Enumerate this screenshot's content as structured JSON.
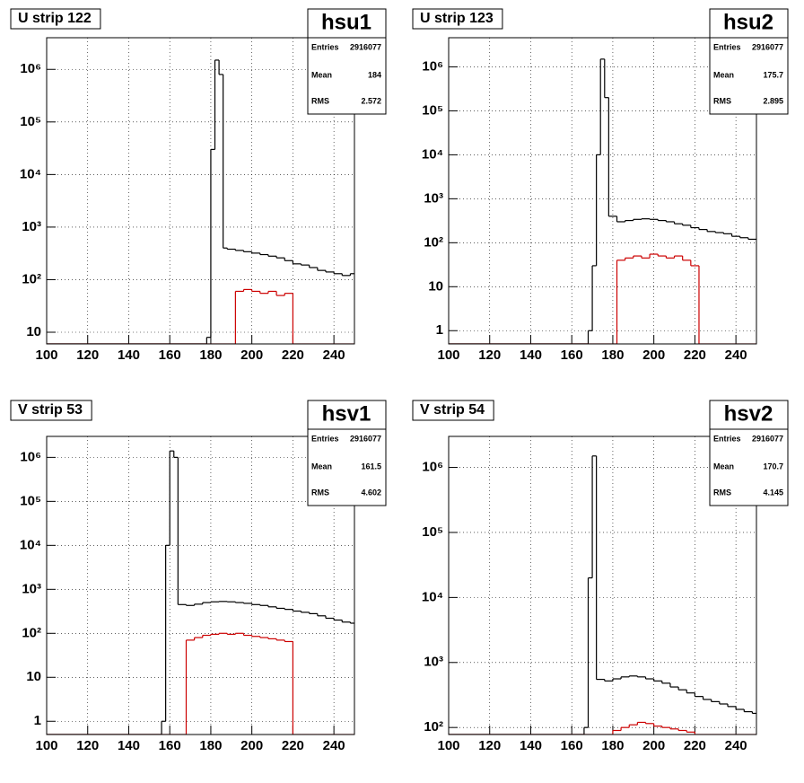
{
  "chart_data": [
    {
      "type": "histogram",
      "title": "U strip 122",
      "name": "hsu1",
      "stats": [
        {
          "label": "Entries",
          "value": 2916077
        },
        {
          "label": "Mean",
          "value": 184
        },
        {
          "label": "RMS",
          "value": 2.572
        }
      ],
      "bins": [
        100,
        178,
        180,
        182,
        184,
        186,
        188,
        192,
        196,
        200,
        204,
        208,
        212,
        216,
        220,
        224,
        228,
        232,
        236,
        240,
        244,
        248,
        250
      ],
      "series": [
        {
          "color": "#000000",
          "values": [
            0,
            8,
            30000,
            1500000,
            800000,
            400,
            380,
            360,
            340,
            320,
            300,
            280,
            260,
            230,
            200,
            190,
            170,
            150,
            140,
            130,
            120,
            130
          ]
        },
        {
          "color": "#cc0000",
          "values": [
            0,
            0,
            0,
            0,
            0,
            0,
            0,
            60,
            65,
            60,
            55,
            60,
            50,
            55,
            0,
            0,
            0,
            0,
            0,
            0,
            0,
            0
          ]
        }
      ],
      "xlim": [
        100,
        250
      ],
      "xticks": [
        100,
        120,
        140,
        160,
        180,
        200,
        220,
        240
      ],
      "ylim": [
        6,
        4000000
      ],
      "log_y": true,
      "grid": true,
      "yticks": [
        10,
        {
          "value": 100,
          "label": "10²"
        },
        {
          "value": 1000,
          "label": "10³"
        },
        {
          "value": 10000,
          "label": "10⁴"
        },
        {
          "value": 100000,
          "label": "10⁵"
        },
        {
          "value": 1000000,
          "label": "10⁶"
        }
      ]
    },
    {
      "type": "histogram",
      "title": "U strip 123",
      "name": "hsu2",
      "stats": [
        {
          "label": "Entries",
          "value": 2916077
        },
        {
          "label": "Mean",
          "value": 175.7
        },
        {
          "label": "RMS",
          "value": 2.895
        }
      ],
      "bins": [
        100,
        168,
        170,
        172,
        174,
        176,
        178,
        182,
        186,
        190,
        194,
        198,
        202,
        206,
        210,
        214,
        218,
        222,
        226,
        230,
        234,
        238,
        242,
        246,
        250
      ],
      "series": [
        {
          "color": "#000000",
          "values": [
            0,
            1,
            30,
            10000,
            1500000,
            200000,
            400,
            300,
            320,
            340,
            350,
            340,
            320,
            300,
            270,
            250,
            220,
            200,
            180,
            170,
            160,
            140,
            130,
            120
          ]
        },
        {
          "color": "#cc0000",
          "values": [
            0,
            0,
            0,
            0,
            0,
            0,
            0,
            40,
            45,
            50,
            45,
            55,
            50,
            45,
            50,
            40,
            30,
            0,
            0,
            0,
            0,
            0,
            0,
            0
          ]
        }
      ],
      "xlim": [
        100,
        250
      ],
      "xticks": [
        100,
        120,
        140,
        160,
        180,
        200,
        220,
        240
      ],
      "ylim": [
        0.5,
        4600000
      ],
      "log_y": true,
      "grid": true,
      "yticks": [
        1,
        10,
        {
          "value": 100,
          "label": "10²"
        },
        {
          "value": 1000,
          "label": "10³"
        },
        {
          "value": 10000,
          "label": "10⁴"
        },
        {
          "value": 100000,
          "label": "10⁵"
        },
        {
          "value": 1000000,
          "label": "10⁶"
        }
      ]
    },
    {
      "type": "histogram",
      "title": "V strip 53",
      "name": "hsv1",
      "stats": [
        {
          "label": "Entries",
          "value": 2916077
        },
        {
          "label": "Mean",
          "value": 161.5
        },
        {
          "label": "RMS",
          "value": 4.602
        }
      ],
      "bins": [
        100,
        156,
        158,
        160,
        162,
        164,
        168,
        172,
        176,
        180,
        184,
        188,
        192,
        196,
        200,
        204,
        208,
        212,
        216,
        220,
        224,
        228,
        232,
        236,
        240,
        244,
        248,
        250
      ],
      "series": [
        {
          "color": "#000000",
          "values": [
            0,
            1,
            10000,
            1400000,
            1000000,
            450,
            430,
            460,
            500,
            520,
            530,
            520,
            500,
            480,
            450,
            430,
            400,
            370,
            350,
            320,
            300,
            280,
            250,
            220,
            200,
            180,
            170
          ]
        },
        {
          "color": "#cc0000",
          "values": [
            0,
            0,
            0,
            0,
            0,
            0,
            70,
            80,
            90,
            95,
            100,
            95,
            100,
            90,
            85,
            80,
            75,
            70,
            65,
            0,
            0,
            0,
            0,
            0,
            0,
            0,
            0
          ]
        }
      ],
      "xlim": [
        100,
        250
      ],
      "xticks": [
        100,
        120,
        140,
        160,
        180,
        200,
        220,
        240
      ],
      "ylim": [
        0.5,
        3000000
      ],
      "log_y": true,
      "grid": true,
      "yticks": [
        1,
        10,
        {
          "value": 100,
          "label": "10²"
        },
        {
          "value": 1000,
          "label": "10³"
        },
        {
          "value": 10000,
          "label": "10⁴"
        },
        {
          "value": 100000,
          "label": "10⁵"
        },
        {
          "value": 1000000,
          "label": "10⁶"
        }
      ]
    },
    {
      "type": "histogram",
      "title": "V strip 54",
      "name": "hsv2",
      "stats": [
        {
          "label": "Entries",
          "value": 2916077
        },
        {
          "label": "Mean",
          "value": 170.7
        },
        {
          "label": "RMS",
          "value": 4.145
        }
      ],
      "bins": [
        100,
        166,
        168,
        170,
        172,
        176,
        180,
        184,
        188,
        192,
        196,
        200,
        204,
        208,
        212,
        216,
        220,
        224,
        228,
        232,
        236,
        240,
        244,
        248,
        250
      ],
      "series": [
        {
          "color": "#000000",
          "values": [
            0,
            100,
            20000,
            1500000,
            550,
            520,
            560,
            600,
            620,
            600,
            560,
            520,
            480,
            420,
            380,
            340,
            300,
            270,
            250,
            230,
            210,
            190,
            175,
            165
          ]
        },
        {
          "color": "#cc0000",
          "values": [
            0,
            0,
            0,
            0,
            0,
            0,
            90,
            100,
            110,
            120,
            115,
            105,
            100,
            95,
            90,
            85,
            0,
            0,
            0,
            0,
            0,
            0,
            0,
            0
          ]
        }
      ],
      "xlim": [
        100,
        250
      ],
      "xticks": [
        100,
        120,
        140,
        160,
        180,
        200,
        220,
        240
      ],
      "ylim": [
        78,
        3000000
      ],
      "log_y": true,
      "grid": true,
      "yticks": [
        {
          "value": 100,
          "label": "10²"
        },
        {
          "value": 1000,
          "label": "10³"
        },
        {
          "value": 10000,
          "label": "10⁴"
        },
        {
          "value": 100000,
          "label": "10⁵"
        },
        {
          "value": 1000000,
          "label": "10⁶"
        }
      ]
    }
  ]
}
